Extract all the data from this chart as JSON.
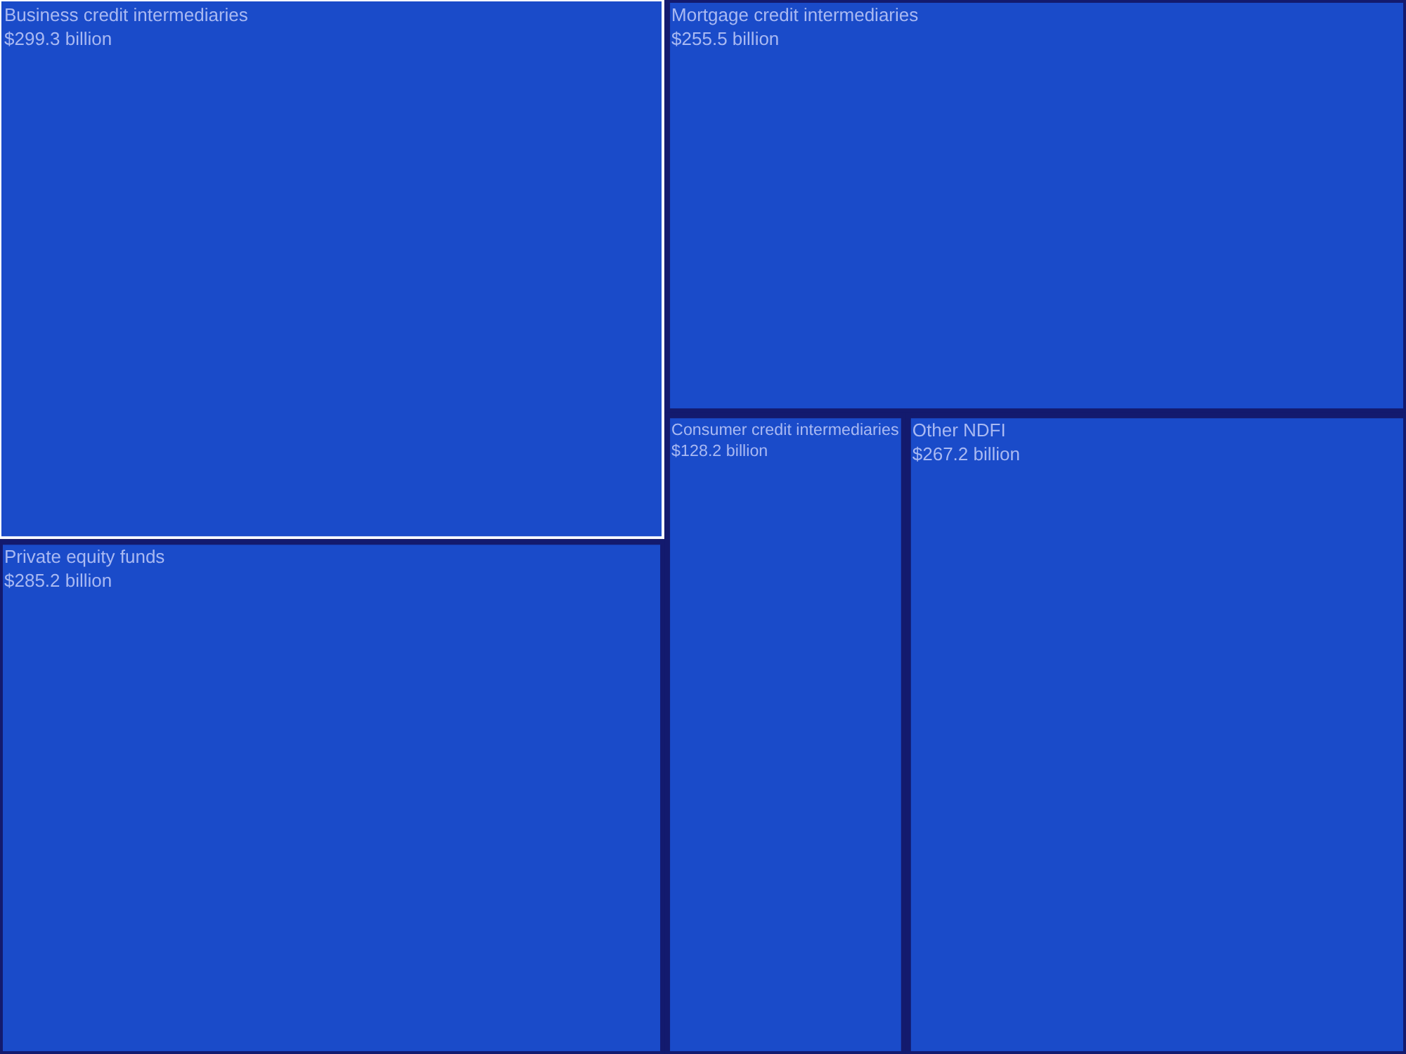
{
  "chart_data": {
    "type": "other",
    "categories": [
      "Business credit intermediaries",
      "Private equity funds",
      "Mortgage credit intermediaries",
      "Consumer credit intermediaries",
      "Other NDFI"
    ],
    "values": [
      299.3,
      285.2,
      255.5,
      128.2,
      267.2
    ],
    "value_labels": [
      "$299.3 billion",
      "$285.2 billion",
      "$255.5 billion",
      "$128.2 billion",
      "$267.2 billion"
    ],
    "colors": [
      "#1a4bc9",
      "#1a4bc9",
      "#1a4bc9",
      "#1a4bc9",
      "#1a4bc9"
    ]
  }
}
